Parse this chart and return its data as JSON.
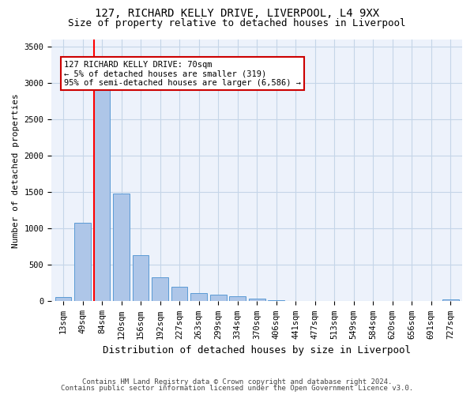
{
  "title_line1": "127, RICHARD KELLY DRIVE, LIVERPOOL, L4 9XX",
  "title_line2": "Size of property relative to detached houses in Liverpool",
  "xlabel": "Distribution of detached houses by size in Liverpool",
  "ylabel": "Number of detached properties",
  "bar_color": "#aec6e8",
  "bar_edge_color": "#5b9bd5",
  "categories": [
    "13sqm",
    "49sqm",
    "84sqm",
    "120sqm",
    "156sqm",
    "192sqm",
    "227sqm",
    "263sqm",
    "299sqm",
    "334sqm",
    "370sqm",
    "406sqm",
    "441sqm",
    "477sqm",
    "513sqm",
    "549sqm",
    "584sqm",
    "620sqm",
    "656sqm",
    "691sqm",
    "727sqm"
  ],
  "values": [
    55,
    1080,
    2950,
    1480,
    640,
    330,
    200,
    115,
    95,
    70,
    35,
    20,
    10,
    5,
    3,
    2,
    2,
    1,
    1,
    1,
    30
  ],
  "property_label": "127 RICHARD KELLY DRIVE: 70sqm",
  "annotation_line1": "← 5% of detached houses are smaller (319)",
  "annotation_line2": "95% of semi-detached houses are larger (6,586) →",
  "red_line_x": 1.6,
  "ylim": [
    0,
    3600
  ],
  "yticks": [
    0,
    500,
    1000,
    1500,
    2000,
    2500,
    3000,
    3500
  ],
  "footnote1": "Contains HM Land Registry data © Crown copyright and database right 2024.",
  "footnote2": "Contains public sector information licensed under the Open Government Licence v3.0.",
  "bg_color": "#edf2fb",
  "annotation_box_color": "#cc0000",
  "grid_color": "#c5d5e8",
  "title_fontsize": 10,
  "subtitle_fontsize": 9,
  "ylabel_fontsize": 8,
  "xlabel_fontsize": 9,
  "tick_fontsize": 7.5,
  "annotation_fontsize": 7.5,
  "footnote_fontsize": 6.5
}
